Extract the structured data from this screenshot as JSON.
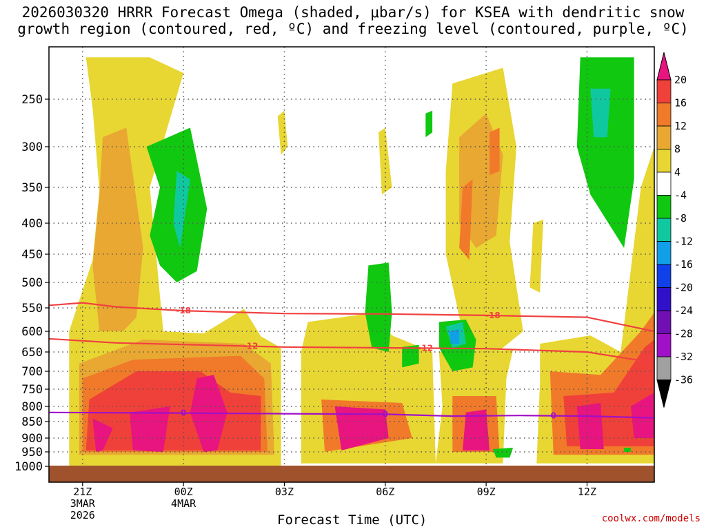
{
  "chart_data": {
    "type": "heatmap",
    "title": "2026030320 HRRR Forecast Omega (shaded, μbar/s) for KSEA with dendritic snow\ngrowth region (contoured, red, ºC) and freezing level (contoured, purple, ºC)",
    "xlabel": "Forecast Time (UTC)",
    "ylabel": "",
    "credit": "coolwx.com/models",
    "y_ticks": [
      "250",
      "300",
      "350",
      "400",
      "450",
      "500",
      "550",
      "600",
      "650",
      "700",
      "750",
      "800",
      "850",
      "900",
      "950",
      "1000"
    ],
    "y_tick_values": [
      250,
      300,
      350,
      400,
      450,
      500,
      550,
      600,
      650,
      700,
      750,
      800,
      850,
      900,
      950,
      1000
    ],
    "ylim": [
      200,
      1000
    ],
    "x_ticks": [
      {
        "hour": 1,
        "line1": "21Z",
        "line2": "3MAR",
        "line3": "2026"
      },
      {
        "hour": 4,
        "line1": "00Z",
        "line2": "4MAR",
        "line3": ""
      },
      {
        "hour": 7,
        "line1": "03Z",
        "line2": "",
        "line3": ""
      },
      {
        "hour": 10,
        "line1": "06Z",
        "line2": "",
        "line3": ""
      },
      {
        "hour": 13,
        "line1": "09Z",
        "line2": "",
        "line3": ""
      },
      {
        "hour": 16,
        "line1": "12Z",
        "line2": "",
        "line3": ""
      }
    ],
    "xlim": [
      0,
      18
    ],
    "colorbar": {
      "labels": [
        "20",
        "16",
        "12",
        "8",
        "4",
        "-4",
        "-8",
        "-12",
        "-16",
        "-20",
        "-24",
        "-28",
        "-32",
        "-36"
      ],
      "colors": [
        "#e8147f",
        "#f0403a",
        "#f07a2a",
        "#e8a832",
        "#e8d632",
        "#ffffff",
        "#10c810",
        "#10c8a0",
        "#10a0e8",
        "#1040e8",
        "#3010c8",
        "#7010b4",
        "#a010c8",
        "#a0a0a0",
        "#000000"
      ]
    },
    "contours": [
      {
        "name": "-18 C",
        "label": "-18",
        "color": "#f04040",
        "values": [
          [
            0,
            545
          ],
          [
            1,
            540
          ],
          [
            2,
            548
          ],
          [
            4,
            556
          ],
          [
            7,
            562
          ],
          [
            10,
            563
          ],
          [
            13,
            566
          ],
          [
            16,
            570
          ],
          [
            18,
            600
          ]
        ]
      },
      {
        "name": "-12 C",
        "label": "-12",
        "color": "#f04040",
        "values": [
          [
            0,
            618
          ],
          [
            2,
            628
          ],
          [
            4,
            632
          ],
          [
            7,
            638
          ],
          [
            10,
            640
          ],
          [
            13,
            642
          ],
          [
            16,
            650
          ],
          [
            18,
            678
          ]
        ]
      },
      {
        "name": "freezing level 0 C",
        "label": "0",
        "color": "#a010c8",
        "values": [
          [
            0,
            820
          ],
          [
            4,
            822
          ],
          [
            7,
            824
          ],
          [
            10,
            826
          ],
          [
            12,
            832
          ],
          [
            14,
            830
          ],
          [
            16,
            832
          ],
          [
            18,
            838
          ]
        ]
      }
    ],
    "omega_regions": [
      {
        "value": 6,
        "points": [
          [
            1.1,
            210
          ],
          [
            3.0,
            210
          ],
          [
            4.0,
            225
          ],
          [
            3.0,
            350
          ],
          [
            3.4,
            600
          ],
          [
            4.6,
            605
          ],
          [
            5.8,
            552
          ],
          [
            6.3,
            612
          ],
          [
            6.9,
            640
          ],
          [
            6.9,
            1000
          ],
          [
            0.6,
            1000
          ],
          [
            0.6,
            600
          ],
          [
            1.3,
            460
          ],
          [
            1.5,
            355
          ],
          [
            1.3,
            260
          ]
        ]
      },
      {
        "value": 10,
        "points": [
          [
            1.6,
            290
          ],
          [
            2.3,
            280
          ],
          [
            2.8,
            440
          ],
          [
            2.6,
            570
          ],
          [
            2.2,
            600
          ],
          [
            1.5,
            600
          ],
          [
            1.3,
            470
          ],
          [
            1.5,
            360
          ]
        ]
      },
      {
        "value": 10,
        "points": [
          [
            0.9,
            680
          ],
          [
            2.8,
            620
          ],
          [
            5.8,
            630
          ],
          [
            6.6,
            680
          ],
          [
            6.7,
            960
          ],
          [
            0.9,
            960
          ]
        ]
      },
      {
        "value": 14,
        "points": [
          [
            1.0,
            720
          ],
          [
            2.5,
            670
          ],
          [
            5.7,
            660
          ],
          [
            6.4,
            720
          ],
          [
            6.5,
            950
          ],
          [
            1.0,
            950
          ]
        ]
      },
      {
        "value": 18,
        "points": [
          [
            1.2,
            780
          ],
          [
            2.6,
            700
          ],
          [
            4.5,
            700
          ],
          [
            5.4,
            760
          ],
          [
            6.3,
            770
          ],
          [
            6.3,
            945
          ],
          [
            1.1,
            945
          ]
        ]
      },
      {
        "value": 22,
        "points": [
          [
            1.3,
            840
          ],
          [
            1.9,
            870
          ],
          [
            1.6,
            945
          ],
          [
            1.4,
            950
          ]
        ]
      },
      {
        "value": 22,
        "points": [
          [
            2.4,
            820
          ],
          [
            3.6,
            800
          ],
          [
            3.4,
            950
          ],
          [
            2.5,
            945
          ]
        ]
      },
      {
        "value": 22,
        "points": [
          [
            4.4,
            720
          ],
          [
            4.9,
            710
          ],
          [
            5.3,
            820
          ],
          [
            5.0,
            945
          ],
          [
            4.6,
            950
          ],
          [
            4.2,
            820
          ]
        ]
      },
      {
        "value": 6,
        "points": [
          [
            7.7,
            580
          ],
          [
            9.7,
            560
          ],
          [
            10.2,
            610
          ],
          [
            11.4,
            650
          ],
          [
            11.5,
            990
          ],
          [
            7.5,
            990
          ],
          [
            7.5,
            650
          ]
        ]
      },
      {
        "value": 14,
        "points": [
          [
            8.1,
            780
          ],
          [
            10.5,
            790
          ],
          [
            10.8,
            900
          ],
          [
            8.2,
            950
          ]
        ]
      },
      {
        "value": 22,
        "points": [
          [
            8.5,
            800
          ],
          [
            10.0,
            810
          ],
          [
            10.1,
            900
          ],
          [
            8.7,
            945
          ]
        ]
      },
      {
        "value": 6,
        "points": [
          [
            12.0,
            235
          ],
          [
            13.5,
            220
          ],
          [
            13.9,
            300
          ],
          [
            13.7,
            430
          ],
          [
            14.1,
            600
          ],
          [
            13.2,
            660
          ],
          [
            12.4,
            640
          ],
          [
            11.8,
            450
          ],
          [
            11.8,
            330
          ]
        ]
      },
      {
        "value": 10,
        "points": [
          [
            12.2,
            290
          ],
          [
            13.0,
            265
          ],
          [
            13.5,
            310
          ],
          [
            13.3,
            420
          ],
          [
            12.7,
            440
          ],
          [
            12.2,
            400
          ]
        ]
      },
      {
        "value": 14,
        "points": [
          [
            12.3,
            350
          ],
          [
            12.6,
            340
          ],
          [
            12.5,
            460
          ],
          [
            12.2,
            440
          ]
        ]
      },
      {
        "value": 14,
        "points": [
          [
            13.1,
            285
          ],
          [
            13.4,
            280
          ],
          [
            13.4,
            330
          ],
          [
            13.1,
            335
          ]
        ]
      },
      {
        "value": 6,
        "points": [
          [
            11.6,
            650
          ],
          [
            13.8,
            645
          ],
          [
            13.6,
            720
          ],
          [
            13.5,
            990
          ],
          [
            11.5,
            990
          ],
          [
            11.7,
            800
          ]
        ]
      },
      {
        "value": 14,
        "points": [
          [
            12.0,
            770
          ],
          [
            13.3,
            770
          ],
          [
            13.4,
            950
          ],
          [
            12.0,
            950
          ]
        ]
      },
      {
        "value": 22,
        "points": [
          [
            12.4,
            820
          ],
          [
            13.0,
            810
          ],
          [
            13.1,
            945
          ],
          [
            12.3,
            945
          ]
        ]
      },
      {
        "value": 6,
        "points": [
          [
            14.6,
            630
          ],
          [
            16.1,
            610
          ],
          [
            17.0,
            650
          ],
          [
            17.2,
            530
          ],
          [
            17.6,
            350
          ],
          [
            18.0,
            300
          ],
          [
            18.0,
            990
          ],
          [
            14.5,
            990
          ],
          [
            14.6,
            730
          ]
        ]
      },
      {
        "value": 14,
        "points": [
          [
            14.9,
            700
          ],
          [
            16.4,
            710
          ],
          [
            17.6,
            600
          ],
          [
            18.0,
            560
          ],
          [
            18.0,
            960
          ],
          [
            15.0,
            960
          ]
        ]
      },
      {
        "value": 18,
        "points": [
          [
            15.3,
            770
          ],
          [
            16.8,
            760
          ],
          [
            17.7,
            640
          ],
          [
            18.0,
            620
          ],
          [
            18.0,
            930
          ],
          [
            15.4,
            930
          ]
        ]
      },
      {
        "value": 22,
        "points": [
          [
            15.7,
            800
          ],
          [
            16.4,
            790
          ],
          [
            16.5,
            940
          ],
          [
            15.8,
            940
          ]
        ]
      },
      {
        "value": 22,
        "points": [
          [
            17.3,
            800
          ],
          [
            18.0,
            760
          ],
          [
            18.0,
            900
          ],
          [
            17.4,
            900
          ]
        ]
      },
      {
        "value": 6,
        "points": [
          [
            6.8,
            268
          ],
          [
            7.0,
            262
          ],
          [
            7.1,
            300
          ],
          [
            6.9,
            310
          ]
        ]
      },
      {
        "value": 6,
        "points": [
          [
            9.8,
            285
          ],
          [
            10.0,
            280
          ],
          [
            10.2,
            350
          ],
          [
            9.9,
            360
          ]
        ]
      },
      {
        "value": 6,
        "points": [
          [
            14.4,
            400
          ],
          [
            14.7,
            395
          ],
          [
            14.6,
            520
          ],
          [
            14.3,
            510
          ]
        ]
      },
      {
        "value": -6,
        "points": [
          [
            2.9,
            300
          ],
          [
            4.2,
            280
          ],
          [
            4.7,
            380
          ],
          [
            4.4,
            480
          ],
          [
            3.8,
            500
          ],
          [
            3.3,
            470
          ],
          [
            3.0,
            420
          ],
          [
            3.3,
            350
          ]
        ]
      },
      {
        "value": -10,
        "points": [
          [
            3.8,
            330
          ],
          [
            4.2,
            340
          ],
          [
            3.9,
            440
          ],
          [
            3.7,
            400
          ]
        ]
      },
      {
        "value": -6,
        "points": [
          [
            9.5,
            470
          ],
          [
            10.1,
            465
          ],
          [
            10.2,
            560
          ],
          [
            10.1,
            650
          ],
          [
            9.6,
            640
          ],
          [
            9.4,
            560
          ]
        ]
      },
      {
        "value": -6,
        "points": [
          [
            10.5,
            638
          ],
          [
            11.0,
            633
          ],
          [
            11.0,
            680
          ],
          [
            10.5,
            690
          ]
        ]
      },
      {
        "value": -6,
        "points": [
          [
            11.6,
            580
          ],
          [
            12.4,
            575
          ],
          [
            12.7,
            620
          ],
          [
            12.6,
            690
          ],
          [
            12.0,
            700
          ],
          [
            11.6,
            640
          ]
        ]
      },
      {
        "value": -10,
        "points": [
          [
            11.8,
            590
          ],
          [
            12.3,
            580
          ],
          [
            12.4,
            630
          ],
          [
            12.0,
            640
          ]
        ]
      },
      {
        "value": -14,
        "points": [
          [
            11.9,
            600
          ],
          [
            12.2,
            595
          ],
          [
            12.2,
            630
          ],
          [
            11.95,
            630
          ]
        ]
      },
      {
        "value": -6,
        "points": [
          [
            15.8,
            210
          ],
          [
            17.4,
            210
          ],
          [
            17.4,
            340
          ],
          [
            17.1,
            440
          ],
          [
            16.1,
            360
          ],
          [
            15.7,
            300
          ]
        ]
      },
      {
        "value": -10,
        "points": [
          [
            16.1,
            240
          ],
          [
            16.7,
            240
          ],
          [
            16.6,
            290
          ],
          [
            16.2,
            290
          ]
        ]
      },
      {
        "value": -6,
        "points": [
          [
            11.2,
            265
          ],
          [
            11.4,
            262
          ],
          [
            11.4,
            285
          ],
          [
            11.2,
            290
          ]
        ]
      },
      {
        "value": -6,
        "points": [
          [
            13.2,
            940
          ],
          [
            13.8,
            935
          ],
          [
            13.7,
            970
          ],
          [
            13.3,
            970
          ]
        ]
      },
      {
        "value": -6,
        "points": [
          [
            17.1,
            935
          ],
          [
            17.3,
            935
          ],
          [
            17.3,
            950
          ],
          [
            17.1,
            950
          ]
        ]
      }
    ]
  }
}
